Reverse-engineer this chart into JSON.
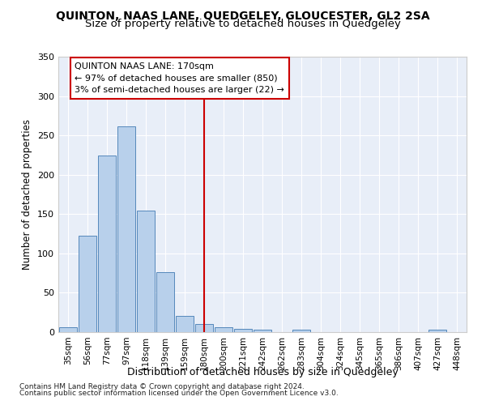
{
  "title1": "QUINTON, NAAS LANE, QUEDGELEY, GLOUCESTER, GL2 2SA",
  "title2": "Size of property relative to detached houses in Quedgeley",
  "xlabel": "Distribution of detached houses by size in Quedgeley",
  "ylabel": "Number of detached properties",
  "bins": [
    "35sqm",
    "56sqm",
    "77sqm",
    "97sqm",
    "118sqm",
    "139sqm",
    "159sqm",
    "180sqm",
    "200sqm",
    "221sqm",
    "242sqm",
    "262sqm",
    "283sqm",
    "304sqm",
    "324sqm",
    "345sqm",
    "365sqm",
    "386sqm",
    "407sqm",
    "427sqm",
    "448sqm"
  ],
  "values": [
    6,
    122,
    224,
    261,
    154,
    76,
    21,
    10,
    6,
    4,
    3,
    0,
    3,
    0,
    0,
    0,
    0,
    0,
    0,
    3,
    0
  ],
  "bar_color": "#b8d0eb",
  "bar_edge_color": "#5588bb",
  "vline_index": 7,
  "vline_color": "#cc0000",
  "annotation_text": "QUINTON NAAS LANE: 170sqm\n← 97% of detached houses are smaller (850)\n3% of semi-detached houses are larger (22) →",
  "annotation_box_edgecolor": "#cc0000",
  "ylim": [
    0,
    350
  ],
  "yticks": [
    0,
    50,
    100,
    150,
    200,
    250,
    300,
    350
  ],
  "background_color": "#e8eef8",
  "footer1": "Contains HM Land Registry data © Crown copyright and database right 2024.",
  "footer2": "Contains public sector information licensed under the Open Government Licence v3.0."
}
